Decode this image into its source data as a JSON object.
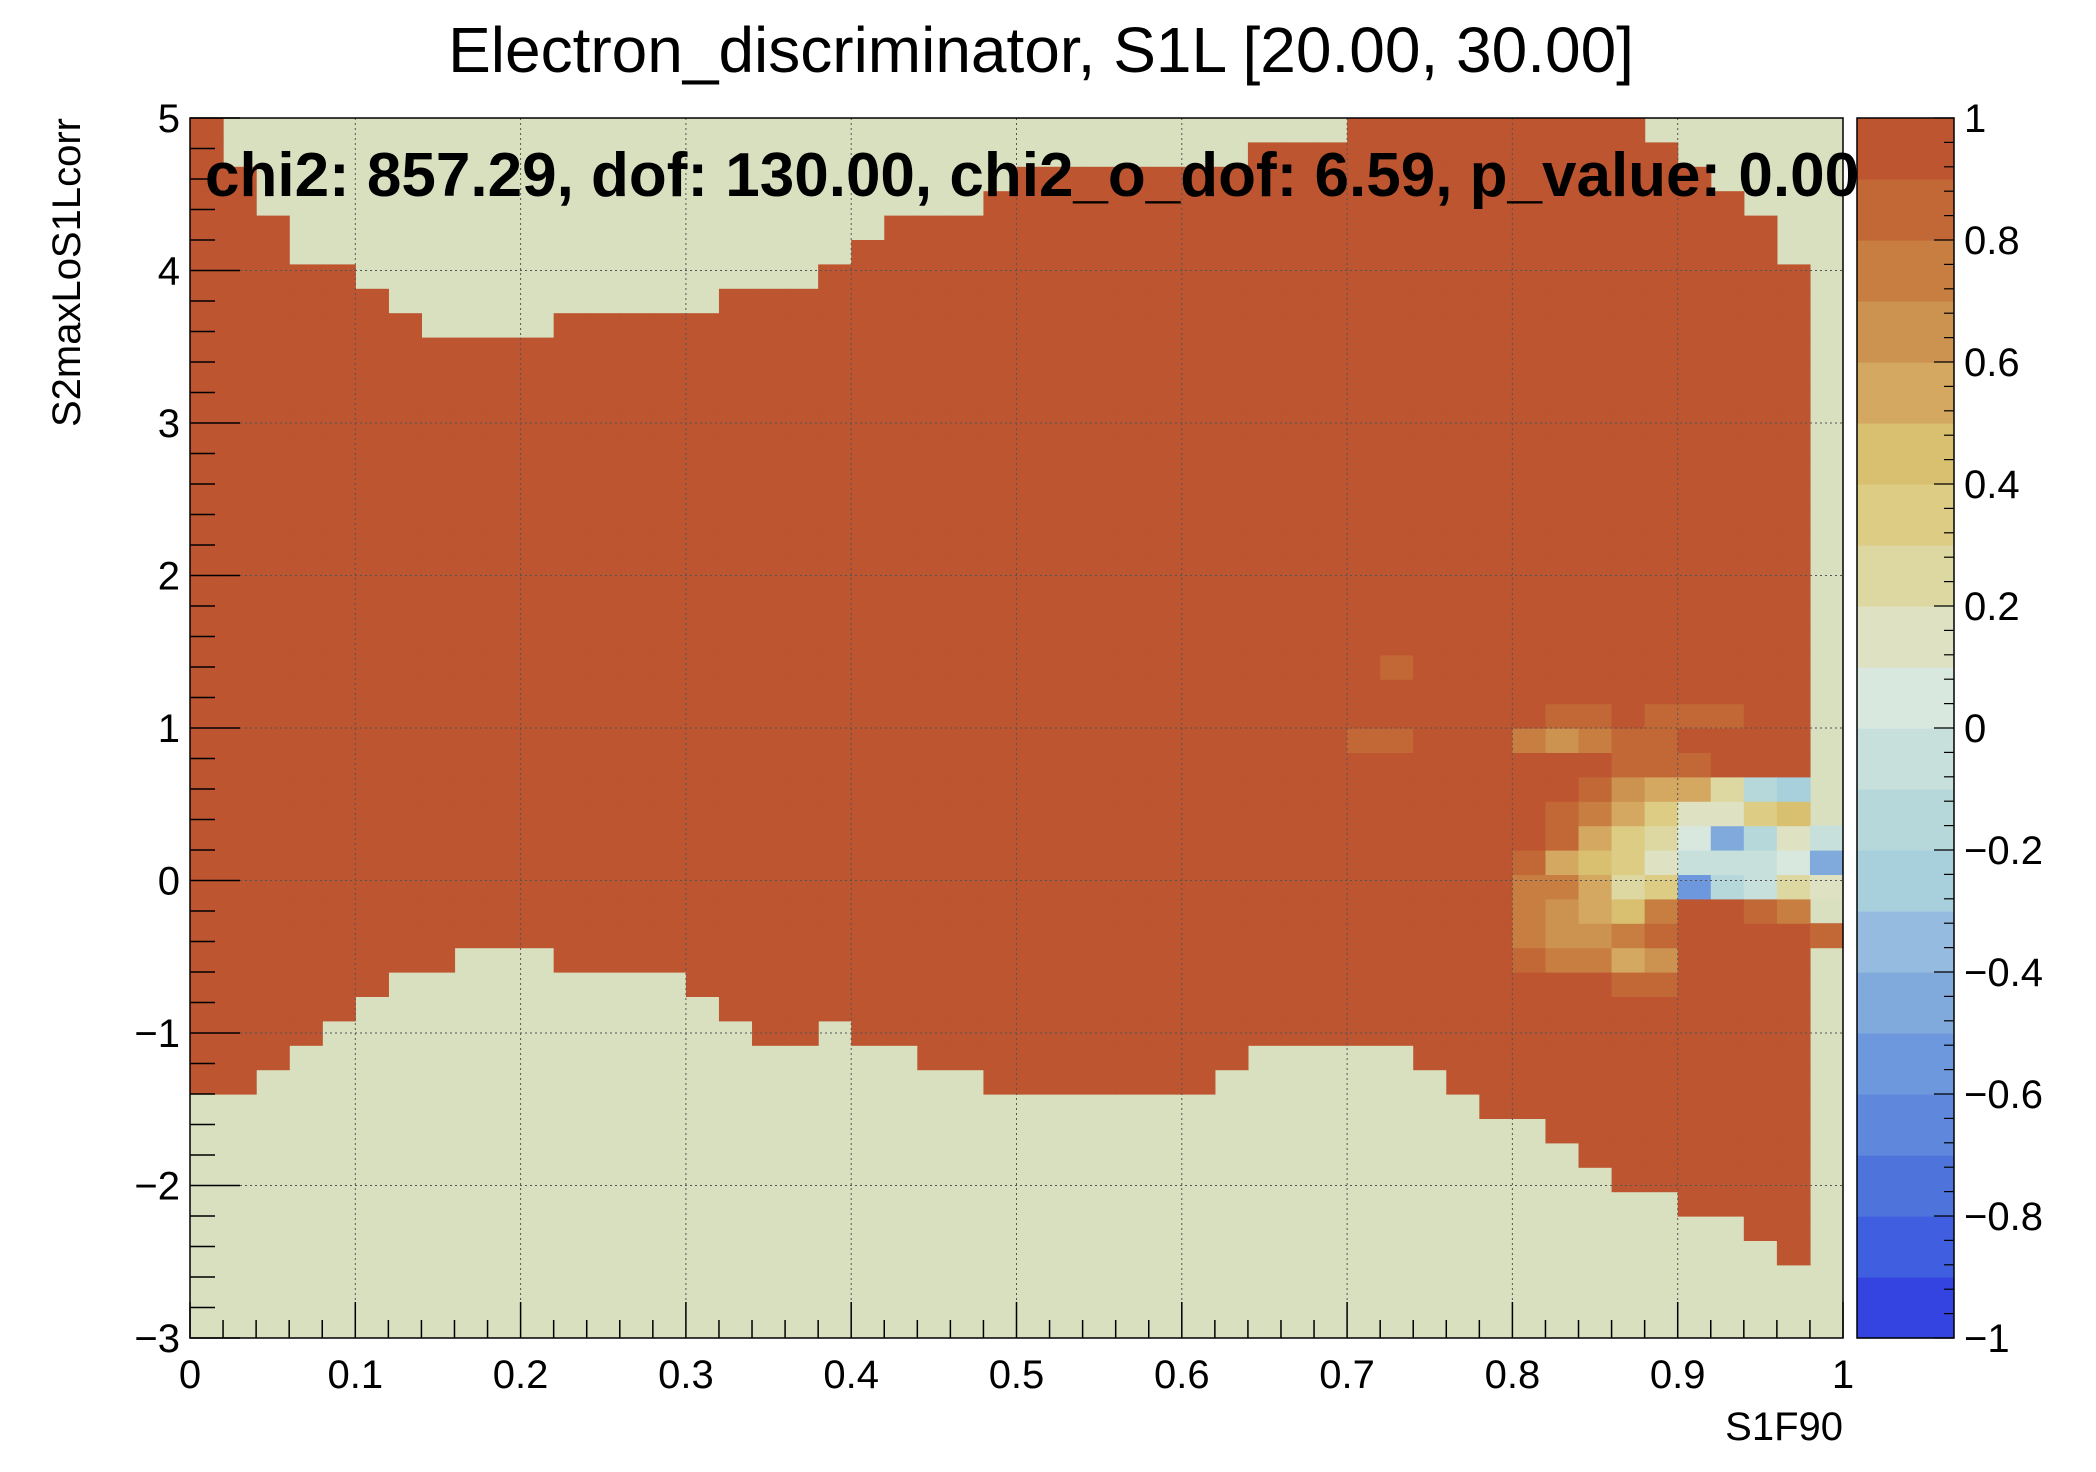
{
  "chart_data": {
    "type": "heatmap",
    "title": "Electron_discriminator, S1L [20.00, 30.00]",
    "annotation": "chi2: 857.29, dof: 130.00, chi2_o_dof: 6.59, p_value: 0.00",
    "xlabel": "S1F90",
    "ylabel": "S2maxLoS1Lcorr",
    "xlim": [
      0,
      1
    ],
    "ylim": [
      -3,
      5
    ],
    "grid": true,
    "x_bins": 50,
    "y_bins": 50,
    "x_ticks": [
      {
        "value": 0,
        "label": "0"
      },
      {
        "value": 0.1,
        "label": "0.1"
      },
      {
        "value": 0.2,
        "label": "0.2"
      },
      {
        "value": 0.3,
        "label": "0.3"
      },
      {
        "value": 0.4,
        "label": "0.4"
      },
      {
        "value": 0.5,
        "label": "0.5"
      },
      {
        "value": 0.6,
        "label": "0.6"
      },
      {
        "value": 0.7,
        "label": "0.7"
      },
      {
        "value": 0.8,
        "label": "0.8"
      },
      {
        "value": 0.9,
        "label": "0.9"
      },
      {
        "value": 1,
        "label": "1"
      }
    ],
    "y_ticks": [
      {
        "value": -3,
        "label": "−3"
      },
      {
        "value": -2,
        "label": "−2"
      },
      {
        "value": -1,
        "label": "−1"
      },
      {
        "value": 0,
        "label": "0"
      },
      {
        "value": 1,
        "label": "1"
      },
      {
        "value": 2,
        "label": "2"
      },
      {
        "value": 3,
        "label": "3"
      },
      {
        "value": 4,
        "label": "4"
      },
      {
        "value": 5,
        "label": "5"
      }
    ],
    "colorbar": {
      "zlim": [
        -1,
        1
      ],
      "ticks": [
        {
          "value": 1,
          "label": "1"
        },
        {
          "value": 0.8,
          "label": "0.8"
        },
        {
          "value": 0.6,
          "label": "0.6"
        },
        {
          "value": 0.4,
          "label": "0.4"
        },
        {
          "value": 0.2,
          "label": "0.2"
        },
        {
          "value": 0,
          "label": "0"
        },
        {
          "value": -0.2,
          "label": "−0.2"
        },
        {
          "value": -0.4,
          "label": "−0.4"
        },
        {
          "value": -0.6,
          "label": "−0.6"
        },
        {
          "value": -0.8,
          "label": "−0.8"
        },
        {
          "value": -1,
          "label": "−1"
        }
      ],
      "colors": [
        "#3344e0",
        "#3f5ee0",
        "#4e74db",
        "#5f88dc",
        "#6d98de",
        "#80aadc",
        "#95bce0",
        "#a8d0dc",
        "#b6d8da",
        "#c8e0dc",
        "#d8e8de",
        "#dee2c2",
        "#ddd8a2",
        "#dccc84",
        "#d8c070",
        "#d4a860",
        "#cc9250",
        "#c87e40",
        "#c26836",
        "#bc5530"
      ]
    },
    "background_value": 0.05,
    "default_value": 1,
    "ranges": [
      [
        0,
        10,
        49
      ],
      [
        1,
        10,
        47
      ],
      [
        2,
        11,
        45
      ],
      [
        3,
        12,
        43
      ],
      [
        4,
        13,
        43
      ],
      [
        5,
        14,
        42
      ],
      [
        6,
        15,
        41
      ],
      [
        7,
        15,
        40
      ],
      [
        8,
        16,
        40
      ],
      [
        9,
        16,
        40
      ],
      [
        10,
        16,
        40
      ],
      [
        11,
        15,
        41
      ],
      [
        12,
        15,
        41
      ],
      [
        13,
        15,
        41
      ],
      [
        14,
        15,
        41
      ],
      [
        15,
        14,
        41
      ],
      [
        16,
        13,
        42
      ],
      [
        17,
        12,
        42
      ],
      [
        18,
        12,
        42
      ],
      [
        19,
        13,
        43
      ],
      [
        20,
        12,
        44
      ],
      [
        21,
        12,
        45
      ],
      [
        22,
        11,
        45
      ],
      [
        23,
        11,
        45
      ],
      [
        24,
        10,
        46
      ],
      [
        25,
        10,
        47
      ],
      [
        26,
        10,
        47
      ],
      [
        27,
        10,
        47
      ],
      [
        28,
        10,
        47
      ],
      [
        29,
        10,
        47
      ],
      [
        30,
        10,
        47
      ],
      [
        31,
        11,
        47
      ],
      [
        32,
        12,
        48
      ],
      [
        33,
        12,
        48
      ],
      [
        34,
        12,
        48
      ],
      [
        35,
        12,
        49
      ],
      [
        36,
        12,
        49
      ],
      [
        37,
        11,
        49
      ],
      [
        38,
        10,
        49
      ],
      [
        39,
        9,
        49
      ],
      [
        40,
        9,
        49
      ],
      [
        41,
        8,
        49
      ],
      [
        42,
        7,
        49
      ],
      [
        43,
        6,
        49
      ],
      [
        44,
        6,
        48
      ],
      [
        45,
        5,
        47
      ],
      [
        46,
        5,
        46
      ],
      [
        47,
        4,
        45
      ],
      [
        48,
        3,
        43
      ]
    ],
    "extra_cells": [
      [
        44,
        21
      ],
      [
        45,
        21
      ],
      [
        47,
        21
      ],
      [
        48,
        21
      ],
      [
        44,
        22
      ],
      [
        45,
        22
      ],
      [
        47,
        22
      ],
      [
        48,
        22
      ],
      [
        47,
        23
      ],
      [
        47,
        24
      ],
      [
        47,
        25
      ],
      [
        47,
        26
      ],
      [
        46,
        26
      ],
      [
        45,
        26
      ],
      [
        44,
        26
      ],
      [
        43,
        25
      ],
      [
        43,
        26
      ],
      [
        43,
        27
      ],
      [
        43,
        28
      ],
      [
        43,
        29
      ],
      [
        43,
        30
      ],
      [
        42,
        26
      ],
      [
        42,
        27
      ],
      [
        42,
        28
      ],
      [
        41,
        26
      ],
      [
        41,
        27
      ],
      [
        40,
        26
      ],
      [
        40,
        27
      ],
      [
        39,
        27
      ]
    ],
    "cells": [
      [
        35,
        24,
        0.85
      ],
      [
        35,
        25,
        0.9
      ],
      [
        35,
        26,
        0.9
      ],
      [
        35,
        28,
        0.9
      ],
      [
        36,
        24,
        0.85
      ],
      [
        36,
        25,
        0.9
      ],
      [
        36,
        27,
        0.85
      ],
      [
        37,
        24,
        0.9
      ],
      [
        37,
        25,
        0.9
      ],
      [
        37,
        26,
        0.9
      ],
      [
        37,
        27,
        0.9
      ],
      [
        37,
        28,
        0.9
      ],
      [
        38,
        24,
        0.9
      ],
      [
        38,
        25,
        0.9
      ],
      [
        38,
        26,
        0.9
      ],
      [
        38,
        27,
        0.9
      ],
      [
        39,
        25,
        0.9
      ],
      [
        39,
        26,
        0.9
      ],
      [
        39,
        28,
        0.9
      ],
      [
        40,
        25,
        0.9
      ],
      [
        40,
        28,
        0.9
      ],
      [
        41,
        28,
        0.9
      ],
      [
        42,
        28,
        0.9
      ],
      [
        43,
        28,
        0.9
      ],
      [
        40,
        24,
        0.7
      ],
      [
        41,
        24,
        0.6
      ],
      [
        41,
        25,
        0.85
      ],
      [
        42,
        25,
        0.8
      ],
      [
        42,
        24,
        0.75
      ],
      [
        43,
        24,
        0.85
      ],
      [
        44,
        24,
        0.8
      ],
      [
        44,
        25,
        0.85
      ],
      [
        45,
        25,
        0.85
      ],
      [
        46,
        25,
        0.85
      ],
      [
        42,
        23,
        0.9
      ],
      [
        43,
        23,
        0.85
      ],
      [
        44,
        23,
        0.85
      ],
      [
        45,
        23,
        0.85
      ],
      [
        42,
        22,
        0.8
      ],
      [
        43,
        22,
        0.6
      ],
      [
        44,
        22,
        0.55
      ],
      [
        45,
        22,
        0.55
      ],
      [
        46,
        22,
        0.25
      ],
      [
        47,
        22,
        -0.2
      ],
      [
        48,
        22,
        -0.25
      ],
      [
        41,
        21,
        0.85
      ],
      [
        42,
        21,
        0.7
      ],
      [
        43,
        21,
        0.5
      ],
      [
        44,
        21,
        0.3
      ],
      [
        45,
        21,
        0.1
      ],
      [
        46,
        21,
        0.15
      ],
      [
        47,
        21,
        0.3
      ],
      [
        48,
        21,
        0.45
      ],
      [
        41,
        20,
        0.8
      ],
      [
        42,
        20,
        0.55
      ],
      [
        43,
        20,
        0.3
      ],
      [
        44,
        20,
        0.2
      ],
      [
        45,
        20,
        0.05
      ],
      [
        46,
        20,
        -0.45
      ],
      [
        47,
        20,
        -0.15
      ],
      [
        48,
        20,
        0.1
      ],
      [
        49,
        20,
        -0.05
      ],
      [
        50,
        20,
        0.15
      ],
      [
        51,
        20,
        0.1
      ],
      [
        40,
        19,
        0.8
      ],
      [
        41,
        19,
        0.55
      ],
      [
        42,
        19,
        0.45
      ],
      [
        43,
        19,
        0.3
      ],
      [
        44,
        19,
        0.1
      ],
      [
        45,
        19,
        -0.05
      ],
      [
        46,
        19,
        -0.05
      ],
      [
        47,
        19,
        -0.1
      ],
      [
        48,
        19,
        0.05
      ],
      [
        49,
        19,
        -0.5
      ],
      [
        50,
        19,
        -0.05
      ],
      [
        51,
        19,
        0.75
      ],
      [
        40,
        18,
        0.7
      ],
      [
        41,
        18,
        0.75
      ],
      [
        42,
        18,
        0.55
      ],
      [
        43,
        18,
        0.2
      ],
      [
        44,
        18,
        0.3
      ],
      [
        45,
        18,
        -0.55
      ],
      [
        46,
        18,
        -0.15
      ],
      [
        47,
        18,
        -0.05
      ],
      [
        48,
        18,
        0.25
      ],
      [
        49,
        18,
        0.1
      ],
      [
        50,
        18,
        0.5
      ],
      [
        40,
        17,
        0.75
      ],
      [
        41,
        17,
        0.6
      ],
      [
        42,
        17,
        0.55
      ],
      [
        43,
        17,
        0.45
      ],
      [
        44,
        17,
        0.75
      ],
      [
        45,
        17,
        0.9
      ],
      [
        46,
        17,
        0.9
      ],
      [
        47,
        17,
        0.85
      ],
      [
        48,
        17,
        0.75
      ],
      [
        40,
        16,
        0.75
      ],
      [
        41,
        16,
        0.65
      ],
      [
        42,
        16,
        0.6
      ],
      [
        43,
        16,
        0.7
      ],
      [
        44,
        16,
        0.85
      ],
      [
        45,
        16,
        0.9
      ],
      [
        46,
        16,
        0.9
      ],
      [
        47,
        16,
        0.9
      ],
      [
        48,
        16,
        0.9
      ],
      [
        49,
        16,
        0.8
      ],
      [
        40,
        15,
        0.85
      ],
      [
        41,
        15,
        0.75
      ],
      [
        42,
        15,
        0.7
      ],
      [
        43,
        15,
        0.55
      ],
      [
        44,
        15,
        0.65
      ],
      [
        42,
        14,
        0.9
      ],
      [
        43,
        14,
        0.85
      ],
      [
        44,
        14,
        0.8
      ]
    ]
  }
}
